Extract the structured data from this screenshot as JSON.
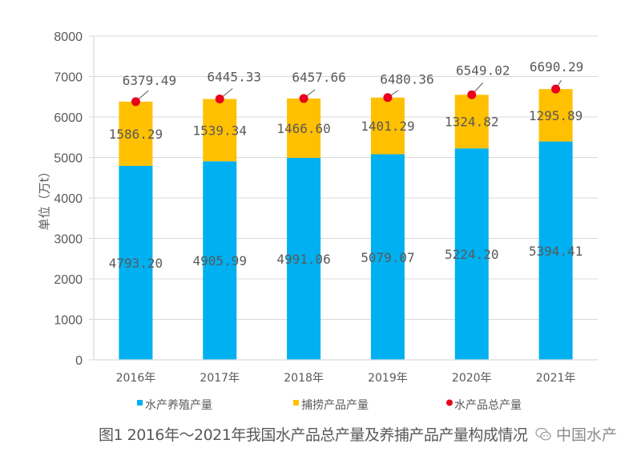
{
  "chart_data": {
    "type": "bar",
    "stacked": true,
    "categories": [
      "2016年",
      "2017年",
      "2018年",
      "2019年",
      "2020年",
      "2021年"
    ],
    "series": [
      {
        "name": "水产养殖产量",
        "type": "bar",
        "color": "#00B0F0",
        "values": [
          4793.2,
          4905.99,
          4991.06,
          5079.07,
          5224.2,
          5394.41
        ],
        "labels": [
          "4793.20",
          "4905.99",
          "4991.06",
          "5079.07",
          "5224.20",
          "5394.41"
        ]
      },
      {
        "name": "捕捞产品产量",
        "type": "bar",
        "color": "#FFC000",
        "values": [
          1586.29,
          1539.34,
          1466.6,
          1401.29,
          1324.82,
          1295.89
        ],
        "labels": [
          "1586.29",
          "1539.34",
          "1466.60",
          "1401.29",
          "1324.82",
          "1295.89"
        ]
      },
      {
        "name": "水产品总产量",
        "type": "scatter",
        "color": "#E8001C",
        "values": [
          6379.49,
          6445.33,
          6457.66,
          6480.36,
          6549.02,
          6690.29
        ],
        "labels": [
          "6379.49",
          "6445.33",
          "6457.66",
          "6480.36",
          "6549.02",
          "6690.29"
        ]
      }
    ],
    "ylabel": "单位（万t）",
    "xlabel": "",
    "ylim": [
      0,
      8000
    ],
    "yticks": [
      "0",
      "1000",
      "2000",
      "3000",
      "4000",
      "5000",
      "6000",
      "7000",
      "8000"
    ],
    "grid": true,
    "legend_position": "bottom",
    "title": "图1 2016年～2021年我国水产品总产量及养捕产品产量构成情况"
  },
  "watermark": {
    "text": "中国水产",
    "icon": "wechat-icon"
  },
  "colors": {
    "axis": "#D9D9D9",
    "grid": "#D9D9D9",
    "text": "#595959",
    "leader": "#595959"
  }
}
